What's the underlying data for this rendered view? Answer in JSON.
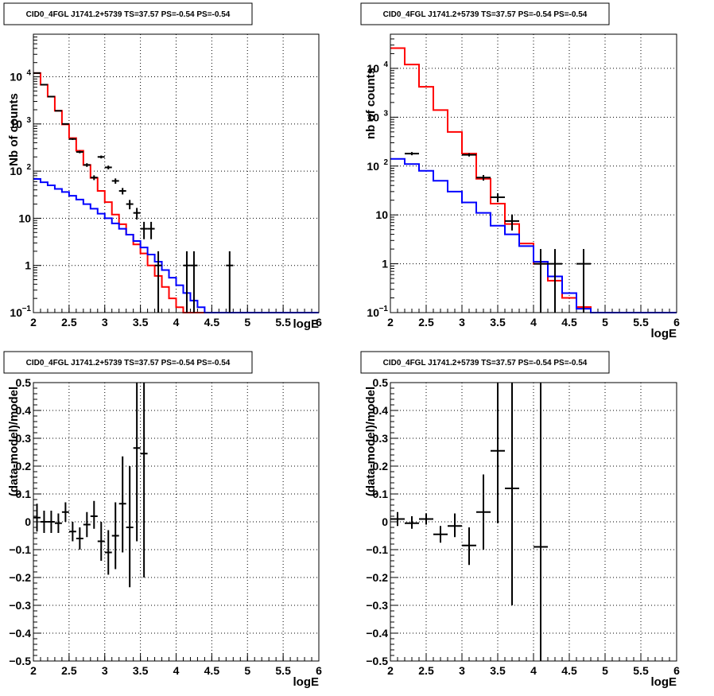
{
  "chart_data": [
    {
      "type": "line",
      "title": "CID0_4FGL J1741.2+5739 TS=37.57 PS=-0.54 PS=-0.54",
      "xlabel": "logE",
      "ylabel": "Nb of counts",
      "xlim": [
        2,
        6
      ],
      "ylim": [
        0.1,
        80000
      ],
      "yscale": "log",
      "grid": true,
      "xticks": [
        "2",
        "2.5",
        "3",
        "3.5",
        "4",
        "4.5",
        "5",
        "5.5",
        "6"
      ],
      "yticks": [
        {
          "v": 0.1,
          "label": "10",
          "sup": "−1"
        },
        {
          "v": 1,
          "label": "1",
          "sup": ""
        },
        {
          "v": 10,
          "label": "10",
          "sup": ""
        },
        {
          "v": 100,
          "label": "10",
          "sup": "2"
        },
        {
          "v": 1000,
          "label": "10",
          "sup": "3"
        },
        {
          "v": 10000,
          "label": "10",
          "sup": "4"
        }
      ],
      "bin_edges": [
        2.0,
        2.1,
        2.2,
        2.3,
        2.4,
        2.5,
        2.6,
        2.7,
        2.8,
        2.9,
        3.0,
        3.1,
        3.2,
        3.3,
        3.4,
        3.5,
        3.6,
        3.7,
        3.8,
        3.9,
        4.0,
        4.1,
        4.2,
        4.3,
        4.4,
        4.5,
        4.6,
        4.7,
        4.8,
        4.9,
        5.0,
        5.1,
        5.2,
        5.3,
        5.4,
        5.5,
        5.6,
        5.7,
        5.8,
        5.9,
        6.0
      ],
      "series": [
        {
          "color": "#ff0000",
          "kind": "hist",
          "values": [
            12000,
            6800,
            3800,
            1900,
            980,
            500,
            270,
            135,
            72,
            38,
            22,
            12,
            7.5,
            4.5,
            2.8,
            1.8,
            1.0,
            0.6,
            0.35,
            0.2,
            0.13,
            0.1,
            0.1,
            0.1,
            0.1,
            0.1,
            0.1,
            0.1,
            0.1,
            0.1,
            0.1,
            0.1,
            0.1,
            0.1,
            0.1,
            0.1,
            0.1,
            0.1,
            0.1,
            0.1
          ]
        },
        {
          "color": "#0000ff",
          "kind": "hist",
          "values": [
            68,
            58,
            50,
            42,
            36,
            30,
            25,
            20,
            16,
            12.5,
            10,
            7.8,
            6,
            4.5,
            3.3,
            2.4,
            1.7,
            1.2,
            0.8,
            0.55,
            0.38,
            0.26,
            0.18,
            0.13,
            0.1,
            0.1,
            0.1,
            0.1,
            0.1,
            0.1,
            0.1,
            0.1,
            0.1,
            0.1,
            0.1,
            0.1,
            0.1,
            0.1,
            0.1,
            0.1
          ]
        },
        {
          "color": "#000000",
          "kind": "points",
          "points": [
            {
              "x": 2.05,
              "y": 12000,
              "lo": 11890,
              "hi": 12110
            },
            {
              "x": 2.15,
              "y": 6800,
              "lo": 6718,
              "hi": 6882
            },
            {
              "x": 2.25,
              "y": 3800,
              "lo": 3738,
              "hi": 3862
            },
            {
              "x": 2.35,
              "y": 1900,
              "lo": 1856,
              "hi": 1944
            },
            {
              "x": 2.45,
              "y": 1000,
              "lo": 968,
              "hi": 1032
            },
            {
              "x": 2.55,
              "y": 480,
              "lo": 458,
              "hi": 502
            },
            {
              "x": 2.65,
              "y": 255,
              "lo": 239,
              "hi": 271
            },
            {
              "x": 2.75,
              "y": 135,
              "lo": 123,
              "hi": 147
            },
            {
              "x": 2.85,
              "y": 73,
              "lo": 64.5,
              "hi": 81.5
            },
            {
              "x": 2.95,
              "y": 200,
              "lo": 186,
              "hi": 214
            },
            {
              "x": 3.05,
              "y": 120,
              "lo": 109,
              "hi": 131
            },
            {
              "x": 3.15,
              "y": 62,
              "lo": 54,
              "hi": 70
            },
            {
              "x": 3.25,
              "y": 38,
              "lo": 32,
              "hi": 44
            },
            {
              "x": 3.35,
              "y": 20,
              "lo": 15.5,
              "hi": 24.5
            },
            {
              "x": 3.45,
              "y": 13,
              "lo": 9.4,
              "hi": 16.6
            },
            {
              "x": 3.55,
              "y": 6,
              "lo": 3.6,
              "hi": 8.4
            },
            {
              "x": 3.65,
              "y": 6,
              "lo": 3.6,
              "hi": 8.4
            },
            {
              "x": 3.75,
              "y": 1,
              "lo": 0.1,
              "hi": 2
            },
            {
              "x": 4.15,
              "y": 1,
              "lo": 0.1,
              "hi": 2
            },
            {
              "x": 4.25,
              "y": 1,
              "lo": 0.1,
              "hi": 2
            },
            {
              "x": 4.75,
              "y": 1,
              "lo": 0.1,
              "hi": 2
            }
          ]
        }
      ]
    },
    {
      "type": "line",
      "title": "CID0_4FGL J1741.2+5739 TS=37.57 PS=-0.54 PS=-0.54",
      "xlabel": "logE",
      "ylabel": "nb of counts",
      "xlim": [
        2,
        6
      ],
      "ylim": [
        0.1,
        50000
      ],
      "yscale": "log",
      "grid": true,
      "xticks": [
        "2",
        "2.5",
        "3",
        "3.5",
        "4",
        "4.5",
        "5",
        "5.5",
        "6"
      ],
      "yticks": [
        {
          "v": 0.1,
          "label": "10",
          "sup": "−1"
        },
        {
          "v": 1,
          "label": "1",
          "sup": ""
        },
        {
          "v": 10,
          "label": "10",
          "sup": ""
        },
        {
          "v": 100,
          "label": "10",
          "sup": "2"
        },
        {
          "v": 1000,
          "label": "10",
          "sup": "3"
        },
        {
          "v": 10000,
          "label": "10",
          "sup": "4"
        }
      ],
      "bin_edges": [
        2.0,
        2.2,
        2.4,
        2.6,
        2.8,
        3.0,
        3.2,
        3.4,
        3.6,
        3.8,
        4.0,
        4.2,
        4.4,
        4.6,
        4.8,
        5.0,
        5.2,
        5.4,
        5.6,
        5.8,
        6.0
      ],
      "series": [
        {
          "color": "#ff0000",
          "kind": "hist",
          "values": [
            26000,
            12000,
            4200,
            1400,
            500,
            180,
            55,
            17,
            6.5,
            2.6,
            1.0,
            0.45,
            0.2,
            0.13,
            0.1,
            0.1,
            0.1,
            0.1,
            0.1,
            0.1
          ]
        },
        {
          "color": "#0000ff",
          "kind": "hist",
          "values": [
            140,
            110,
            80,
            50,
            30,
            18,
            11,
            6,
            4,
            2.3,
            1.1,
            0.55,
            0.25,
            0.12,
            0.1,
            0.1,
            0.1,
            0.1,
            0.1,
            0.1
          ]
        },
        {
          "color": "#000000",
          "kind": "points",
          "points": [
            {
              "x": 2.3,
              "y": 180,
              "lo": 166.6,
              "hi": 193.4
            },
            {
              "x": 3.1,
              "y": 170,
              "lo": 157,
              "hi": 183
            },
            {
              "x": 3.3,
              "y": 58,
              "lo": 50.4,
              "hi": 65.6
            },
            {
              "x": 3.5,
              "y": 23,
              "lo": 18.2,
              "hi": 27.8
            },
            {
              "x": 3.7,
              "y": 7.5,
              "lo": 4.8,
              "hi": 10.2
            },
            {
              "x": 4.1,
              "y": 1,
              "lo": 0.1,
              "hi": 2
            },
            {
              "x": 4.3,
              "y": 1,
              "lo": 0.1,
              "hi": 2
            },
            {
              "x": 4.7,
              "y": 1,
              "lo": 0.1,
              "hi": 2
            }
          ]
        }
      ]
    },
    {
      "type": "scatter",
      "title": "CID0_4FGL J1741.2+5739 TS=37.57 PS=-0.54 PS=-0.54",
      "xlabel": "logE",
      "ylabel": "(data-model)/model",
      "xlim": [
        2,
        6
      ],
      "ylim": [
        -0.5,
        0.5
      ],
      "yscale": "linear",
      "grid": true,
      "xticks": [
        "2",
        "2.5",
        "3",
        "3.5",
        "4",
        "4.5",
        "5",
        "5.5",
        "6"
      ],
      "yticks": [
        {
          "v": -0.5,
          "label": "−0.5",
          "sup": ""
        },
        {
          "v": -0.4,
          "label": "−0.4",
          "sup": ""
        },
        {
          "v": -0.3,
          "label": "−0.3",
          "sup": ""
        },
        {
          "v": -0.2,
          "label": "−0.2",
          "sup": ""
        },
        {
          "v": -0.1,
          "label": "−0.1",
          "sup": ""
        },
        {
          "v": 0,
          "label": "0",
          "sup": ""
        },
        {
          "v": 0.1,
          "label": "0.1",
          "sup": ""
        },
        {
          "v": 0.2,
          "label": "0.2",
          "sup": ""
        },
        {
          "v": 0.3,
          "label": "0.3",
          "sup": ""
        },
        {
          "v": 0.4,
          "label": "0.4",
          "sup": ""
        },
        {
          "v": 0.5,
          "label": "0.5",
          "sup": ""
        }
      ],
      "series": [
        {
          "color": "#000000",
          "kind": "points",
          "halfwidth": 0.05,
          "points": [
            {
              "x": 2.05,
              "y": 0.015,
              "lo": -0.035,
              "hi": 0.065
            },
            {
              "x": 2.15,
              "y": 0.0,
              "lo": -0.04,
              "hi": 0.04
            },
            {
              "x": 2.25,
              "y": 0.0,
              "lo": -0.04,
              "hi": 0.04
            },
            {
              "x": 2.35,
              "y": -0.005,
              "lo": -0.04,
              "hi": 0.03
            },
            {
              "x": 2.45,
              "y": 0.035,
              "lo": 0.0,
              "hi": 0.07
            },
            {
              "x": 2.55,
              "y": -0.035,
              "lo": -0.07,
              "hi": 0.0
            },
            {
              "x": 2.65,
              "y": -0.06,
              "lo": -0.1,
              "hi": -0.02
            },
            {
              "x": 2.75,
              "y": -0.01,
              "lo": -0.055,
              "hi": 0.035
            },
            {
              "x": 2.85,
              "y": 0.02,
              "lo": -0.025,
              "hi": 0.075
            },
            {
              "x": 2.95,
              "y": -0.07,
              "lo": -0.14,
              "hi": 0.0
            },
            {
              "x": 3.05,
              "y": -0.11,
              "lo": -0.19,
              "hi": -0.03
            },
            {
              "x": 3.15,
              "y": -0.05,
              "lo": -0.17,
              "hi": 0.07
            },
            {
              "x": 3.25,
              "y": 0.065,
              "lo": -0.11,
              "hi": 0.235
            },
            {
              "x": 3.35,
              "y": -0.02,
              "lo": -0.235,
              "hi": 0.2
            },
            {
              "x": 3.45,
              "y": 0.265,
              "lo": -0.07,
              "hi": 0.5
            },
            {
              "x": 3.55,
              "y": 0.245,
              "lo": -0.2,
              "hi": 0.5
            }
          ]
        }
      ]
    },
    {
      "type": "scatter",
      "title": "CID0_4FGL J1741.2+5739 TS=37.57 PS=-0.54 PS=-0.54",
      "xlabel": "logE",
      "ylabel": "(data-model)/model",
      "xlim": [
        2,
        6
      ],
      "ylim": [
        -0.5,
        0.5
      ],
      "yscale": "linear",
      "grid": true,
      "xticks": [
        "2",
        "2.5",
        "3",
        "3.5",
        "4",
        "4.5",
        "5",
        "5.5",
        "6"
      ],
      "yticks": [
        {
          "v": -0.5,
          "label": "−0.5",
          "sup": ""
        },
        {
          "v": -0.4,
          "label": "−0.4",
          "sup": ""
        },
        {
          "v": -0.3,
          "label": "−0.3",
          "sup": ""
        },
        {
          "v": -0.2,
          "label": "−0.2",
          "sup": ""
        },
        {
          "v": -0.1,
          "label": "−0.1",
          "sup": ""
        },
        {
          "v": 0,
          "label": "0",
          "sup": ""
        },
        {
          "v": 0.1,
          "label": "0.1",
          "sup": ""
        },
        {
          "v": 0.2,
          "label": "0.2",
          "sup": ""
        },
        {
          "v": 0.3,
          "label": "0.3",
          "sup": ""
        },
        {
          "v": 0.4,
          "label": "0.4",
          "sup": ""
        },
        {
          "v": 0.5,
          "label": "0.5",
          "sup": ""
        }
      ],
      "series": [
        {
          "color": "#000000",
          "kind": "points",
          "halfwidth": 0.1,
          "points": [
            {
              "x": 2.1,
              "y": 0.01,
              "lo": -0.015,
              "hi": 0.035
            },
            {
              "x": 2.3,
              "y": -0.005,
              "lo": -0.025,
              "hi": 0.02
            },
            {
              "x": 2.5,
              "y": 0.01,
              "lo": -0.01,
              "hi": 0.03
            },
            {
              "x": 2.7,
              "y": -0.045,
              "lo": -0.075,
              "hi": -0.015
            },
            {
              "x": 2.9,
              "y": -0.015,
              "lo": -0.055,
              "hi": 0.03
            },
            {
              "x": 3.1,
              "y": -0.085,
              "lo": -0.155,
              "hi": -0.02
            },
            {
              "x": 3.3,
              "y": 0.035,
              "lo": -0.1,
              "hi": 0.17
            },
            {
              "x": 3.5,
              "y": 0.255,
              "lo": -0.005,
              "hi": 0.5
            },
            {
              "x": 3.7,
              "y": 0.12,
              "lo": -0.3,
              "hi": 0.5
            },
            {
              "x": 4.1,
              "y": -0.09,
              "lo": -0.5,
              "hi": 0.5
            }
          ]
        }
      ]
    }
  ]
}
